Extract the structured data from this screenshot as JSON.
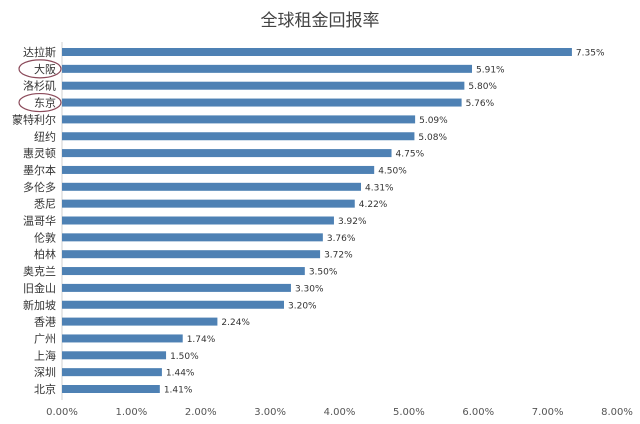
{
  "chart_data": {
    "type": "bar",
    "orientation": "horizontal",
    "title": "全球租金回报率",
    "xlabel": "",
    "ylabel": "",
    "xlim": [
      0,
      8
    ],
    "x_ticks": [
      "0.00%",
      "1.00%",
      "2.00%",
      "3.00%",
      "4.00%",
      "5.00%",
      "6.00%",
      "7.00%",
      "8.00%"
    ],
    "grid": false,
    "bar_color": "#4E81B4",
    "categories": [
      "达拉斯",
      "大阪",
      "洛杉矶",
      "东京",
      "蒙特利尔",
      "纽约",
      "惠灵顿",
      "墨尔本",
      "多伦多",
      "悉尼",
      "温哥华",
      "伦敦",
      "柏林",
      "奥克兰",
      "旧金山",
      "新加坡",
      "香港",
      "广州",
      "上海",
      "深圳",
      "北京"
    ],
    "values": [
      7.35,
      5.91,
      5.8,
      5.76,
      5.09,
      5.08,
      4.75,
      4.5,
      4.31,
      4.22,
      3.92,
      3.76,
      3.72,
      3.5,
      3.3,
      3.2,
      2.24,
      1.74,
      1.5,
      1.44,
      1.41
    ],
    "value_labels": [
      "7.35%",
      "5.91%",
      "5.80%",
      "5.76%",
      "5.09%",
      "5.08%",
      "4.75%",
      "4.50%",
      "4.31%",
      "4.22%",
      "3.92%",
      "3.76%",
      "3.72%",
      "3.50%",
      "3.30%",
      "3.20%",
      "2.24%",
      "1.74%",
      "1.50%",
      "1.44%",
      "1.41%"
    ],
    "highlighted_categories": [
      "大阪",
      "东京"
    ],
    "highlight_color": "#8B4A5A"
  }
}
